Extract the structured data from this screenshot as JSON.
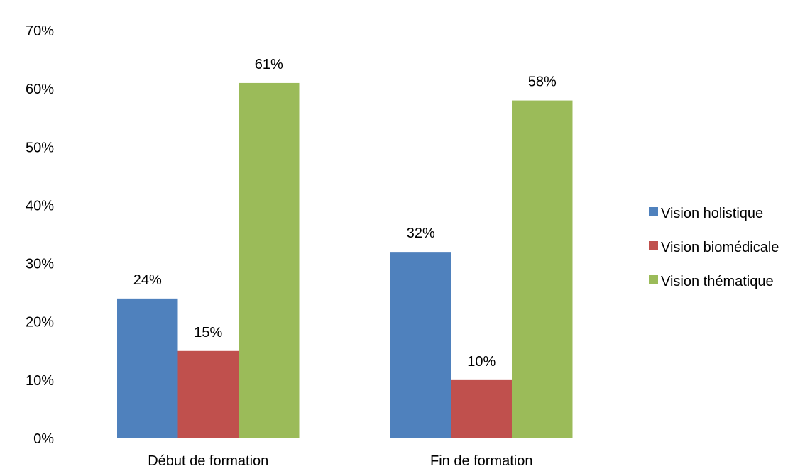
{
  "chart_data": {
    "type": "bar",
    "categories": [
      "Début de formation",
      "Fin de formation"
    ],
    "series": [
      {
        "name": "Vision holistique",
        "values": [
          24,
          32
        ],
        "color": "#4f81bd"
      },
      {
        "name": "Vision biomédicale",
        "values": [
          15,
          10
        ],
        "color": "#c0504d"
      },
      {
        "name": "Vision thématique",
        "values": [
          61,
          58
        ],
        "color": "#9bbb59"
      }
    ],
    "data_labels": [
      [
        "24%",
        "32%"
      ],
      [
        "15%",
        "10%"
      ],
      [
        "61%",
        "58%"
      ]
    ],
    "yticks": [
      "0%",
      "10%",
      "20%",
      "30%",
      "40%",
      "50%",
      "60%",
      "70%"
    ],
    "ylim": [
      0,
      70
    ],
    "value_unit": "%",
    "grid": false,
    "legend_position": "right"
  }
}
